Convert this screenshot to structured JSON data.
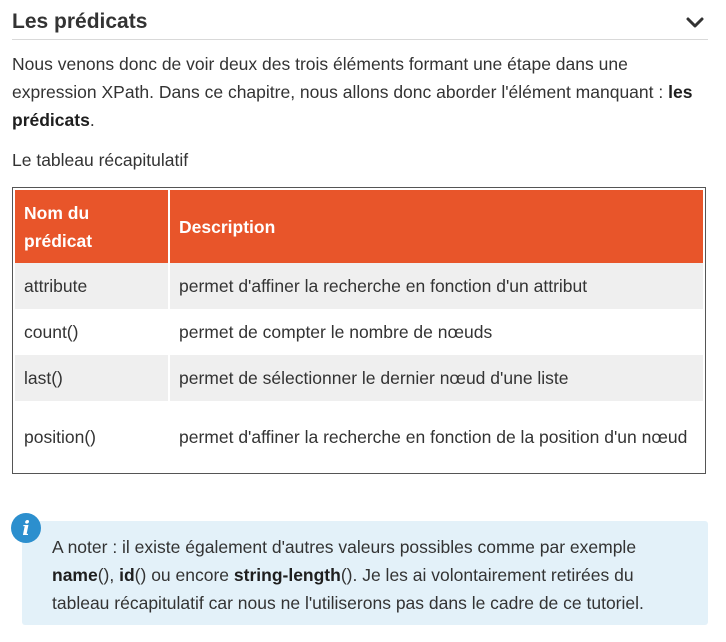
{
  "section": {
    "title": "Les prédicats",
    "toggle_icon": "chevron-down-icon"
  },
  "intro": {
    "text_1": "Nous venons donc de voir deux des trois éléments formant une étape dans une expression XPath. Dans ce chapitre, nous allons donc aborder l'élément manquant : ",
    "bold": "les prédicats",
    "text_2": "."
  },
  "table_caption": "Le tableau récapitulatif",
  "table": {
    "headers": [
      "Nom du prédicat",
      "Description"
    ],
    "rows": [
      [
        "attribute",
        "permet d'affiner la recherche en fonction d'un attribut"
      ],
      [
        "count()",
        "permet de compter le nombre de nœuds"
      ],
      [
        "last()",
        "permet de sélectionner le dernier nœud d'une liste"
      ],
      [
        "position()",
        "permet d'affiner la recherche en fonction de la position d'un nœud"
      ]
    ]
  },
  "note": {
    "icon": "info-icon",
    "icon_glyph": "i",
    "text_1": "A noter : il existe également d'autres valeurs possibles comme par exemple ",
    "code_1": "name",
    "paren_1": "(), ",
    "code_2": "id",
    "paren_2": "()",
    "text_2": " ou encore ",
    "code_3": "string-length",
    "paren_3": "()",
    "text_3": ". Je les ai volontairement retirées du tableau récapitulatif car nous ne l'utiliserons pas dans le cadre de ce tutoriel."
  },
  "colors": {
    "table_header": "#e8552a",
    "row_shade": "#efefef",
    "note_background": "#e3f1f9",
    "note_icon": "#2c8fce"
  }
}
